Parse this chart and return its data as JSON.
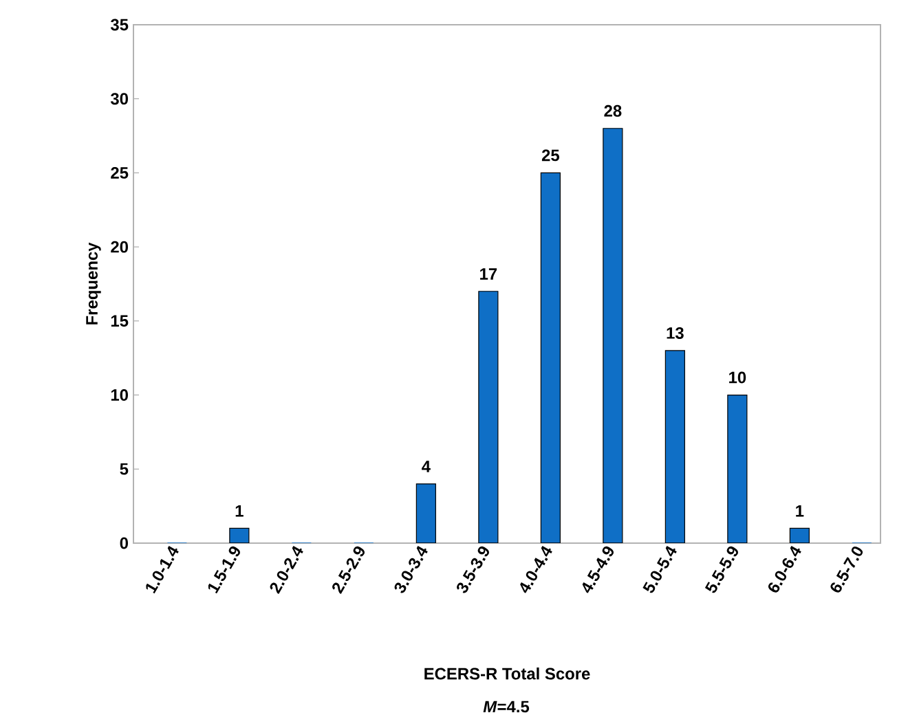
{
  "chart_data": {
    "type": "bar",
    "xlabel": "ECERS-R Total Score",
    "ylabel": "Frequency",
    "categories": [
      "1.0-1.4",
      "1.5-1.9",
      "2.0-2.4",
      "2.5-2.9",
      "3.0-3.4",
      "3.5-3.9",
      "4.0-4.4",
      "4.5-4.9",
      "5.0-5.4",
      "5.5-5.9",
      "6.0-6.4",
      "6.5-7.0"
    ],
    "values": [
      0,
      1,
      0,
      0,
      4,
      17,
      25,
      28,
      13,
      10,
      1,
      0
    ],
    "value_labels": [
      null,
      "1",
      null,
      null,
      "4",
      "17",
      "25",
      "28",
      "13",
      "10",
      "1",
      null
    ],
    "color": "#0f6fc6",
    "ylim": [
      0,
      35
    ],
    "yticks": [
      0,
      5,
      10,
      15,
      20,
      25,
      30,
      35
    ],
    "annotations": [
      "*M*=4.5"
    ]
  }
}
